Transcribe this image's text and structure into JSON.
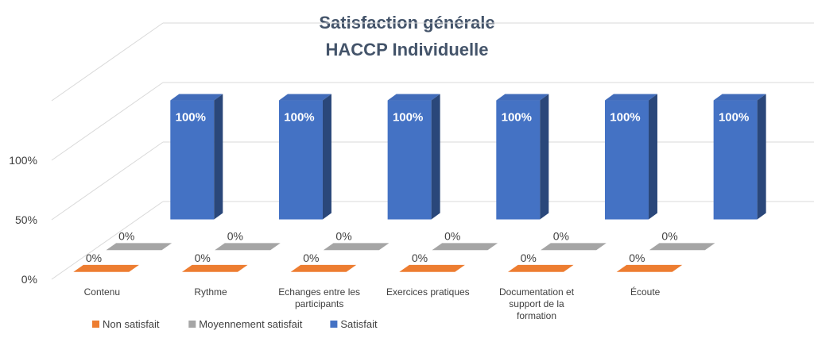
{
  "chart_data": {
    "type": "bar",
    "title": "Satisfaction générale",
    "subtitle": "HACCP Individuelle",
    "categories": [
      "Contenu",
      "Rythme",
      "Echanges entre les participants",
      "Exercices pratiques",
      "Documentation et support de la formation",
      "Écoute"
    ],
    "category_lines": [
      [
        "Contenu"
      ],
      [
        "Rythme"
      ],
      [
        "Echanges entre les",
        "participants"
      ],
      [
        "Exercices pratiques"
      ],
      [
        "Documentation et",
        "support de la",
        "formation"
      ],
      [
        "Écoute"
      ]
    ],
    "series": [
      {
        "name": "Non satisfait",
        "values": [
          0,
          0,
          0,
          0,
          0,
          0
        ],
        "labels": [
          "0%",
          "0%",
          "0%",
          "0%",
          "0%",
          "0%"
        ]
      },
      {
        "name": "Moyennement satisfait",
        "values": [
          0,
          0,
          0,
          0,
          0,
          0
        ],
        "labels": [
          "0%",
          "0%",
          "0%",
          "0%",
          "0%",
          "0%"
        ]
      },
      {
        "name": "Satisfait",
        "values": [
          100,
          100,
          100,
          100,
          100,
          100
        ],
        "labels": [
          "100%",
          "100%",
          "100%",
          "100%",
          "100%",
          "100%"
        ]
      }
    ],
    "y_ticks": [
      "0%",
      "50%",
      "100%"
    ],
    "ylim": [
      0,
      150
    ],
    "legend_position": "bottom-left",
    "grid": true,
    "colors": {
      "Non satisfait": "#ed7d31",
      "Moyennement satisfait": "#a5a5a5",
      "Satisfait": "#4472c4",
      "grid": "#d9d9d9",
      "title": "#44546a"
    }
  }
}
